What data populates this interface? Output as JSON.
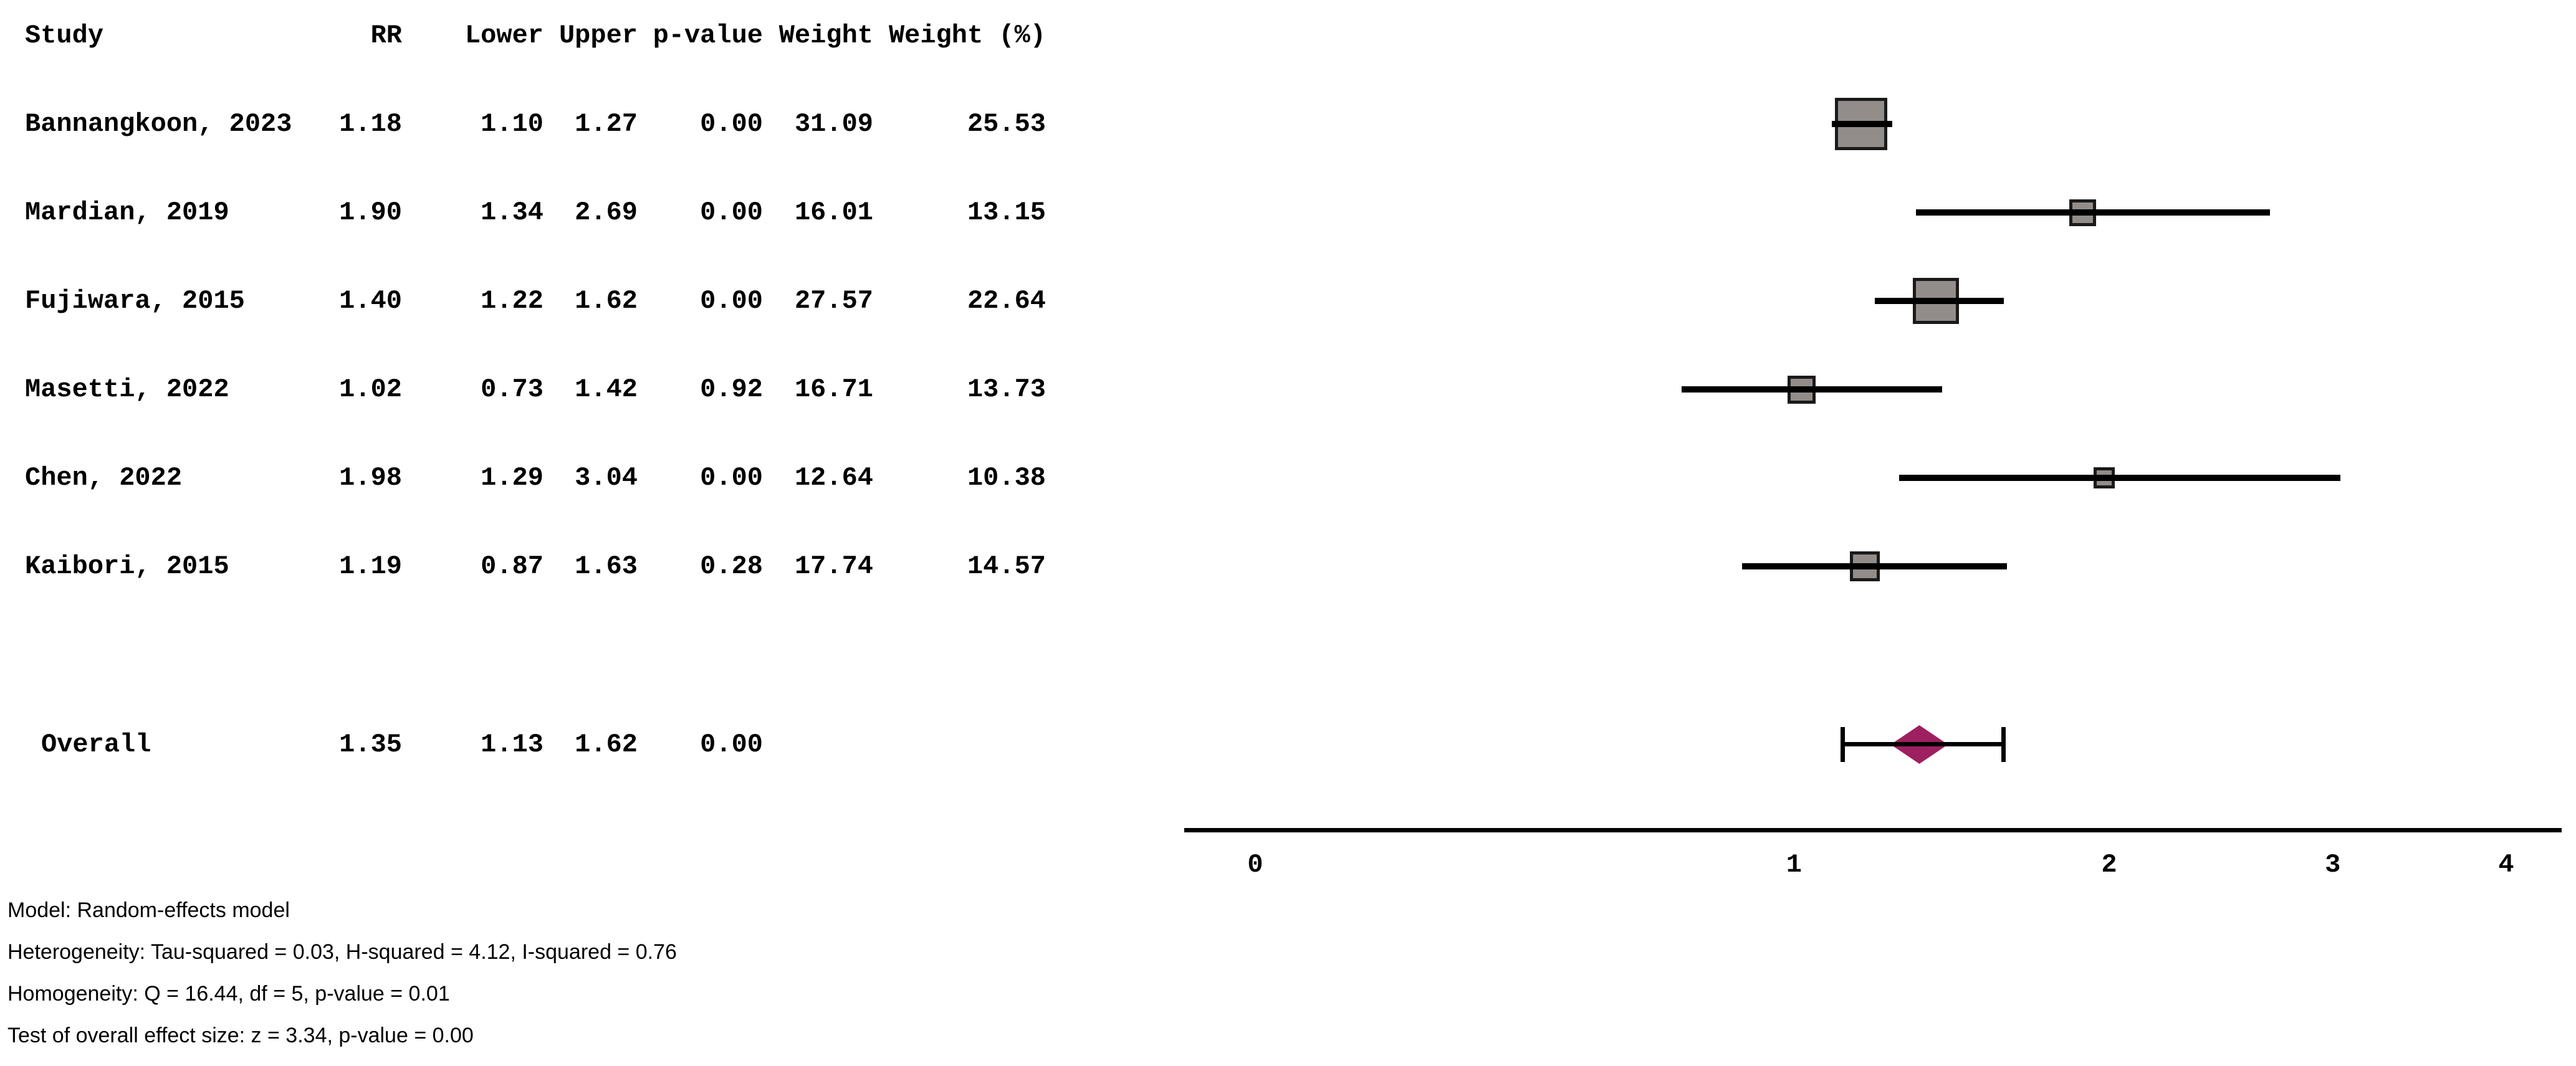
{
  "table": {
    "headers": {
      "study": "Study",
      "rr": "RR",
      "lower": "Lower",
      "upper": "Upper",
      "p_value": "p-value",
      "weight": "Weight",
      "weight_pct": "Weight (%)"
    },
    "rows": [
      {
        "study": "Bannangkoon, 2023",
        "rr": "1.18",
        "lower": "1.10",
        "upper": "1.27",
        "p_value": "0.00",
        "weight": "31.09",
        "weight_pct": "25.53"
      },
      {
        "study": "Mardian, 2019",
        "rr": "1.90",
        "lower": "1.34",
        "upper": "2.69",
        "p_value": "0.00",
        "weight": "16.01",
        "weight_pct": "13.15"
      },
      {
        "study": "Fujiwara, 2015",
        "rr": "1.40",
        "lower": "1.22",
        "upper": "1.62",
        "p_value": "0.00",
        "weight": "27.57",
        "weight_pct": "22.64"
      },
      {
        "study": "Masetti, 2022",
        "rr": "1.02",
        "lower": "0.73",
        "upper": "1.42",
        "p_value": "0.92",
        "weight": "16.71",
        "weight_pct": "13.73"
      },
      {
        "study": "Chen, 2022",
        "rr": "1.98",
        "lower": "1.29",
        "upper": "3.04",
        "p_value": "0.00",
        "weight": "12.64",
        "weight_pct": "10.38"
      },
      {
        "study": "Kaibori, 2015",
        "rr": "1.19",
        "lower": "0.87",
        "upper": "1.63",
        "p_value": "0.28",
        "weight": "17.74",
        "weight_pct": "14.57"
      }
    ],
    "overall": {
      "study": "Overall",
      "rr": "1.35",
      "lower": "1.13",
      "upper": "1.62",
      "p_value": "0.00"
    }
  },
  "footer": {
    "lines": [
      "Model: Random-effects model",
      "Heterogeneity: Tau-squared = 0.03, H-squared = 4.12, I-squared = 0.76",
      "Homogeneity: Q = 16.44, df = 5, p-value = 0.01",
      "Test of overall effect size: z = 3.34, p-value = 0.00"
    ]
  },
  "colors": {
    "square_fill": "#928d8a",
    "square_border": "#1a1a1a",
    "ci_line": "#000000",
    "diamond": "#9e2060",
    "axis": "#000000",
    "text": "#000000"
  },
  "chart_data": {
    "type": "forest",
    "title": "",
    "x_scale": "log1p",
    "x_ticks": [
      0,
      1,
      2,
      3,
      4
    ],
    "x_range": [
      0,
      4
    ],
    "effect_measure": "RR",
    "studies": [
      {
        "name": "Bannangkoon, 2023",
        "rr": 1.18,
        "lower": 1.1,
        "upper": 1.27,
        "p_value": 0.0,
        "weight": 31.09,
        "weight_pct": 25.53
      },
      {
        "name": "Mardian, 2019",
        "rr": 1.9,
        "lower": 1.34,
        "upper": 2.69,
        "p_value": 0.0,
        "weight": 16.01,
        "weight_pct": 13.15
      },
      {
        "name": "Fujiwara, 2015",
        "rr": 1.4,
        "lower": 1.22,
        "upper": 1.62,
        "p_value": 0.0,
        "weight": 27.57,
        "weight_pct": 22.64
      },
      {
        "name": "Masetti, 2022",
        "rr": 1.02,
        "lower": 0.73,
        "upper": 1.42,
        "p_value": 0.92,
        "weight": 16.71,
        "weight_pct": 13.73
      },
      {
        "name": "Chen, 2022",
        "rr": 1.98,
        "lower": 1.29,
        "upper": 3.04,
        "p_value": 0.0,
        "weight": 12.64,
        "weight_pct": 10.38
      },
      {
        "name": "Kaibori, 2015",
        "rr": 1.19,
        "lower": 0.87,
        "upper": 1.63,
        "p_value": 0.28,
        "weight": 17.74,
        "weight_pct": 14.57
      }
    ],
    "overall": {
      "name": "Overall",
      "rr": 1.35,
      "lower": 1.13,
      "upper": 1.62,
      "p_value": 0.0
    }
  }
}
